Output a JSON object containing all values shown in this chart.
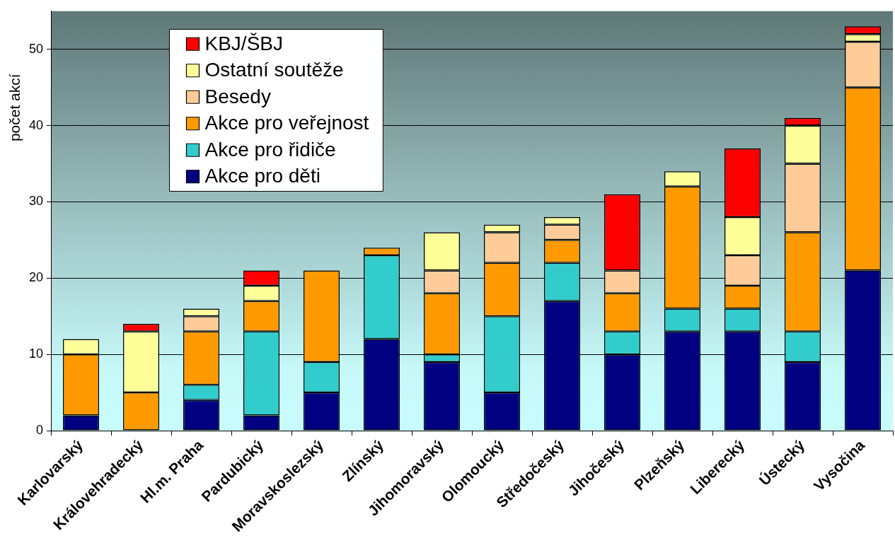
{
  "chart_data": {
    "type": "bar",
    "stacked": true,
    "ylabel": "počet akcí",
    "categories": [
      "Karlovarský",
      "Královehradecký",
      "Hl.m. Praha",
      "Pardubický",
      "Moravskoslezský",
      "Zlínský",
      "Jihomoravský",
      "Olomoucký",
      "Středočeský",
      "Jihočeský",
      "Plzeňský",
      "Liberecký",
      "Ústecký",
      "Vysočina"
    ],
    "series": [
      {
        "name": "Akce pro děti",
        "color": "#000080",
        "values": [
          2,
          0,
          4,
          2,
          5,
          12,
          9,
          5,
          17,
          10,
          13,
          13,
          9,
          21
        ]
      },
      {
        "name": "Akce pro řidiče",
        "color": "#33cccc",
        "values": [
          0,
          0,
          2,
          11,
          4,
          11,
          1,
          10,
          5,
          3,
          3,
          3,
          4,
          0
        ]
      },
      {
        "name": "Akce pro veřejnost",
        "color": "#ff9900",
        "values": [
          8,
          5,
          7,
          4,
          12,
          1,
          8,
          7,
          3,
          5,
          16,
          3,
          13,
          24
        ]
      },
      {
        "name": "Besedy",
        "color": "#ffcc99",
        "values": [
          0,
          0,
          2,
          0,
          0,
          0,
          3,
          4,
          2,
          3,
          0,
          4,
          9,
          6
        ]
      },
      {
        "name": "Ostatní soutěže",
        "color": "#ffff99",
        "values": [
          2,
          8,
          1,
          2,
          0,
          0,
          5,
          1,
          1,
          0,
          2,
          5,
          5,
          1
        ]
      },
      {
        "name": "KBJ/ŠBJ",
        "color": "#ff0000",
        "values": [
          0,
          1,
          0,
          2,
          0,
          0,
          0,
          0,
          0,
          10,
          0,
          9,
          1,
          1
        ]
      }
    ],
    "ylim": [
      0,
      55
    ],
    "yticks": [
      0,
      10,
      20,
      30,
      40,
      50
    ],
    "grid": "y",
    "legend": "top left"
  }
}
